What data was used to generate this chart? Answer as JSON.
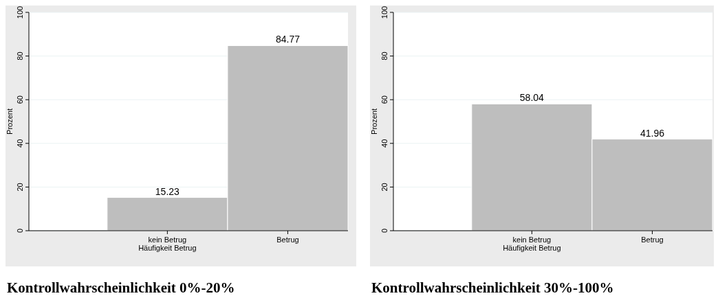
{
  "chart_data": [
    {
      "type": "bar",
      "title": "Kontrollwahrscheinlichkeit 0%-20%",
      "xlabel": "Häufigkeit Betrug",
      "ylabel": "Prozent",
      "categories": [
        "kein Betrug",
        "Betrug"
      ],
      "values": [
        15.23,
        84.77
      ],
      "color": "#bebebe",
      "ylim": [
        0,
        100
      ],
      "yticks": [
        0,
        20,
        40,
        60,
        80,
        100
      ],
      "grid": "y",
      "data_labels": true
    },
    {
      "type": "bar",
      "title": "Kontrollwahrscheinlichkeit 30%-100%",
      "xlabel": "Häufigkeit Betrug",
      "ylabel": "Prozent",
      "categories": [
        "kein Betrug",
        "Betrug"
      ],
      "values": [
        58.04,
        41.96
      ],
      "color": "#bebebe",
      "ylim": [
        0,
        100
      ],
      "yticks": [
        0,
        20,
        40,
        60,
        80,
        100
      ],
      "grid": "y",
      "data_labels": true
    }
  ]
}
